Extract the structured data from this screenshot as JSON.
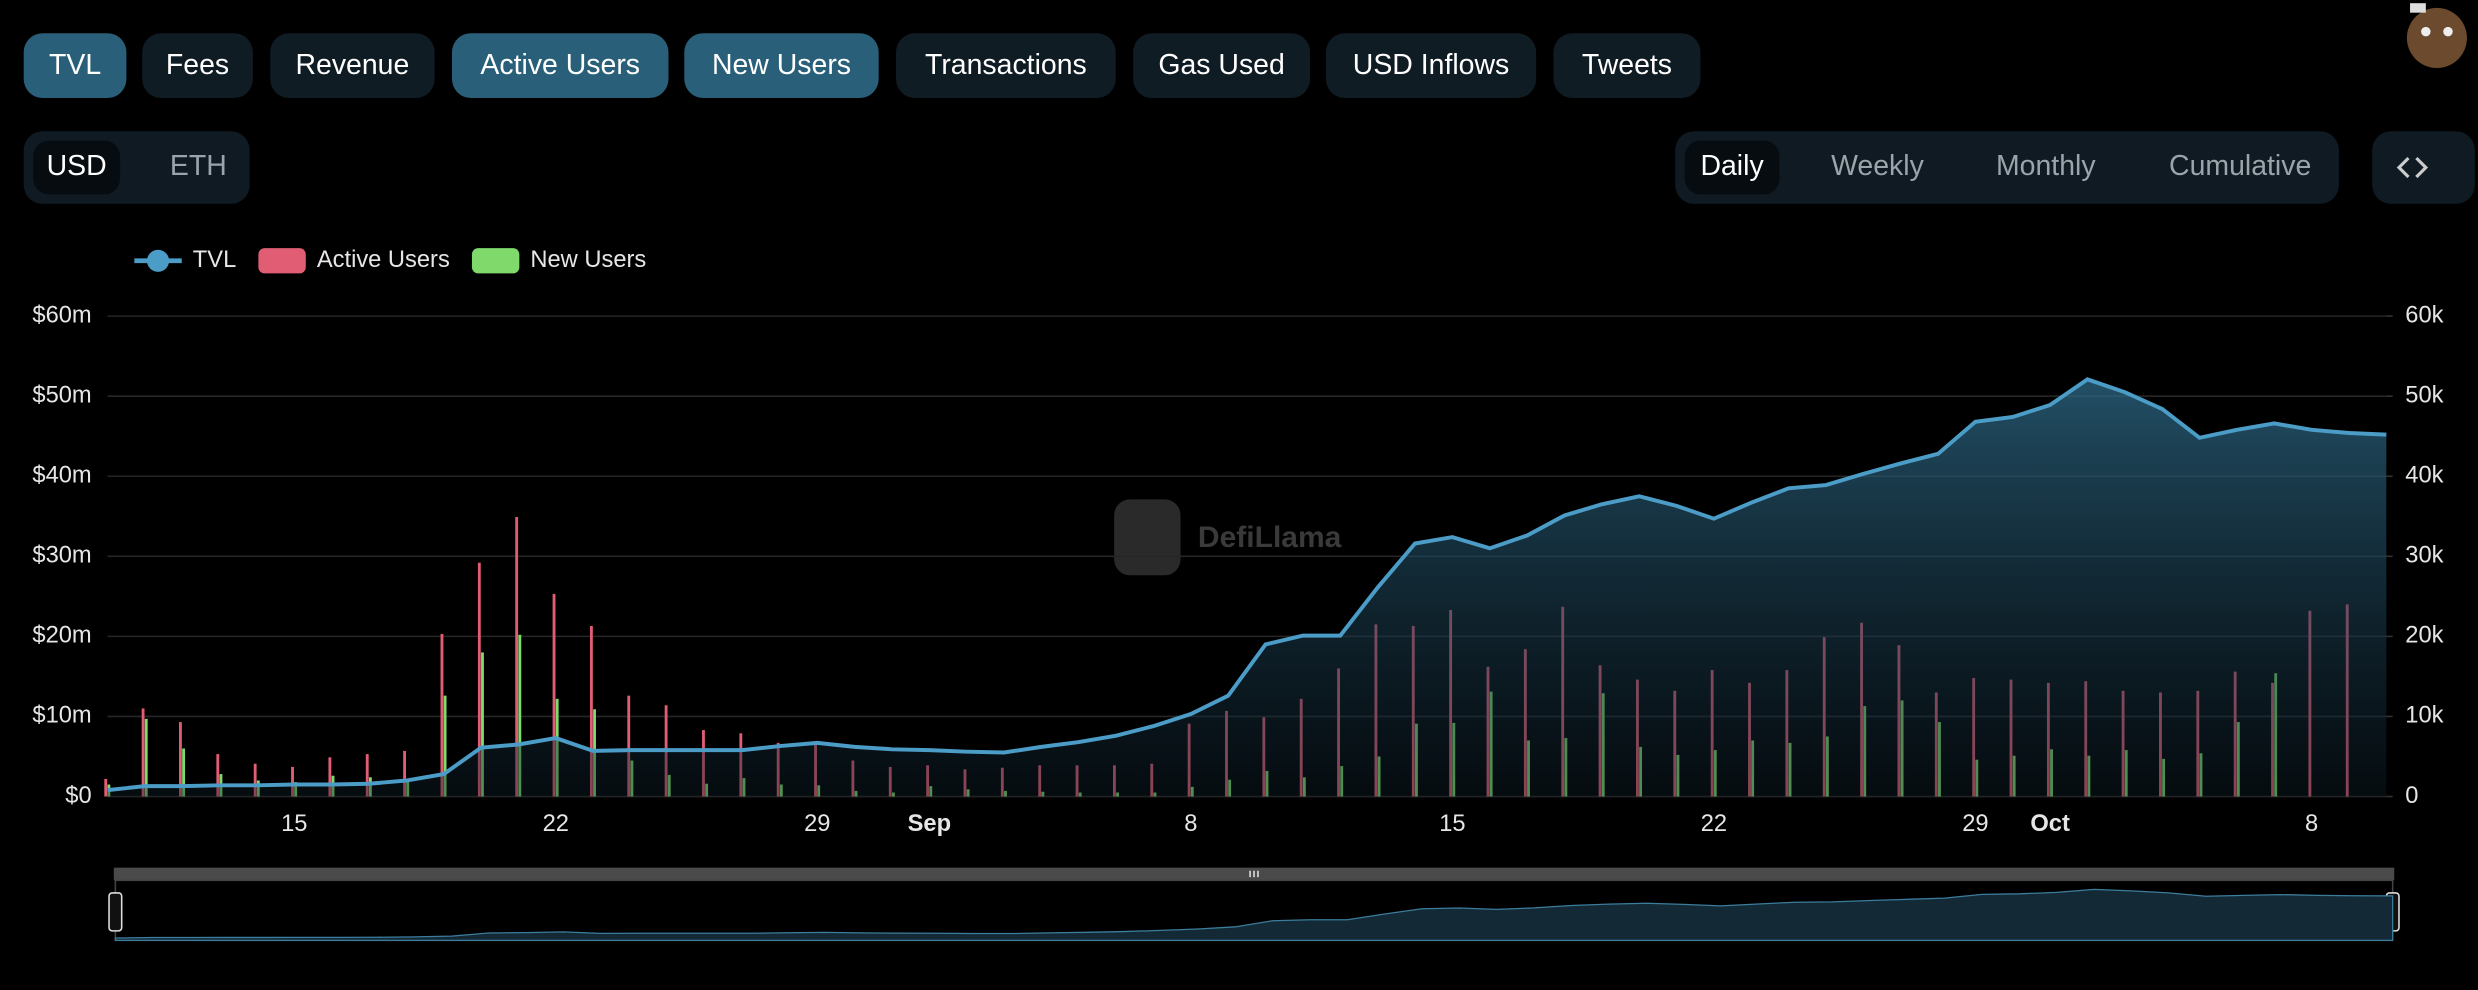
{
  "tabs": [
    {
      "label": "TVL",
      "active": true
    },
    {
      "label": "Fees",
      "active": false
    },
    {
      "label": "Revenue",
      "active": false
    },
    {
      "label": "Active Users",
      "active": true
    },
    {
      "label": "New Users",
      "active": true
    },
    {
      "label": "Transactions",
      "active": false
    },
    {
      "label": "Gas Used",
      "active": false
    },
    {
      "label": "USD Inflows",
      "active": false
    },
    {
      "label": "Tweets",
      "active": false
    }
  ],
  "currency": [
    {
      "label": "USD",
      "selected": true
    },
    {
      "label": "ETH",
      "selected": false
    }
  ],
  "periods": [
    {
      "label": "Daily",
      "selected": true
    },
    {
      "label": "Weekly",
      "selected": false
    },
    {
      "label": "Monthly",
      "selected": false
    },
    {
      "label": "Cumulative",
      "selected": false
    }
  ],
  "watermark": "DefiLlama",
  "chart_data": {
    "type": "combo",
    "categories": [
      null,
      null,
      null,
      null,
      null,
      "15",
      null,
      null,
      null,
      null,
      null,
      null,
      "22",
      null,
      null,
      null,
      null,
      null,
      null,
      "29",
      null,
      null,
      "Sep",
      null,
      null,
      null,
      null,
      null,
      null,
      "8",
      null,
      null,
      null,
      null,
      null,
      null,
      "15",
      null,
      null,
      null,
      null,
      null,
      null,
      "22",
      null,
      null,
      null,
      null,
      null,
      null,
      "29",
      null,
      "Oct",
      null,
      null,
      null,
      null,
      null,
      null,
      "8",
      null,
      null
    ],
    "series": [
      {
        "name": "TVL",
        "type": "area",
        "color": "#4b9cc7",
        "values": [
          0.8,
          1.3,
          1.3,
          1.4,
          1.4,
          1.5,
          1.5,
          1.6,
          2.0,
          2.8,
          6.1,
          6.5,
          7.3,
          5.7,
          5.8,
          5.8,
          5.8,
          5.8,
          6.3,
          6.7,
          6.2,
          5.9,
          5.8,
          5.6,
          5.5,
          6.2,
          6.8,
          7.6,
          8.8,
          10.3,
          12.6,
          19.0,
          20.1,
          20.1,
          26.1,
          31.6,
          32.4,
          31.0,
          32.6,
          35.1,
          36.5,
          37.5,
          36.3,
          34.7,
          36.7,
          38.5,
          38.9,
          40.3,
          41.6,
          42.8,
          46.8,
          47.4,
          48.9,
          52.1,
          50.5,
          48.4,
          44.8,
          45.8,
          46.6,
          45.8,
          45.4,
          45.2
        ]
      },
      {
        "name": "Active Users",
        "type": "bar",
        "axis": "y2",
        "color": "#e05d74",
        "values": [
          2200,
          11000,
          9300,
          5300,
          4100,
          3700,
          4900,
          5300,
          5700,
          20300,
          29200,
          34900,
          25300,
          21300,
          12600,
          11400,
          8300,
          7900,
          6700,
          6500,
          4500,
          3700,
          3900,
          3400,
          3600,
          3900,
          3900,
          3900,
          4100,
          9100,
          10700,
          9900,
          12200,
          16000,
          21500,
          21300,
          23300,
          16200,
          18400,
          23700,
          16400,
          14600,
          13200,
          15800,
          14200,
          15800,
          19900,
          21700,
          18900,
          13000,
          14800,
          14600,
          14200,
          14400,
          13200,
          13000,
          13200,
          15600,
          14200,
          23200,
          24000,
          null
        ]
      },
      {
        "name": "New Users",
        "type": "bar",
        "axis": "y2",
        "color": "#7fd96b",
        "values": [
          1500,
          9700,
          6000,
          2800,
          2000,
          1800,
          2600,
          2400,
          2200,
          12600,
          18000,
          20200,
          12200,
          10900,
          4500,
          2700,
          1600,
          2300,
          1500,
          1400,
          700,
          500,
          1300,
          900,
          700,
          600,
          500,
          500,
          500,
          1200,
          2100,
          3200,
          2400,
          3800,
          5000,
          9100,
          9200,
          13100,
          7000,
          7300,
          12900,
          6200,
          5200,
          5800,
          7000,
          6700,
          7500,
          11300,
          12000,
          9300,
          4600,
          5100,
          5900,
          5100,
          5800,
          4700,
          5400,
          9300,
          15400,
          0,
          0,
          null
        ]
      }
    ],
    "ylim": [
      0,
      60
    ],
    "yticks": [
      {
        "value": 0,
        "label": "$0"
      },
      {
        "value": 10,
        "label": "$10m"
      },
      {
        "value": 20,
        "label": "$20m"
      },
      {
        "value": 30,
        "label": "$30m"
      },
      {
        "value": 40,
        "label": "$40m"
      },
      {
        "value": 50,
        "label": "$50m"
      },
      {
        "value": 60,
        "label": "$60m"
      }
    ],
    "y2lim": [
      0,
      60000
    ],
    "y2ticks": [
      0,
      {
        "value": 10000,
        "label": "10k"
      },
      {
        "value": 20000,
        "label": "20k"
      },
      {
        "value": 30000,
        "label": "30k"
      },
      {
        "value": 40000,
        "label": "40k"
      },
      {
        "value": 50000,
        "label": "50k"
      },
      {
        "value": 60000,
        "label": "60k"
      }
    ],
    "grid": true,
    "legend": "top-left"
  }
}
